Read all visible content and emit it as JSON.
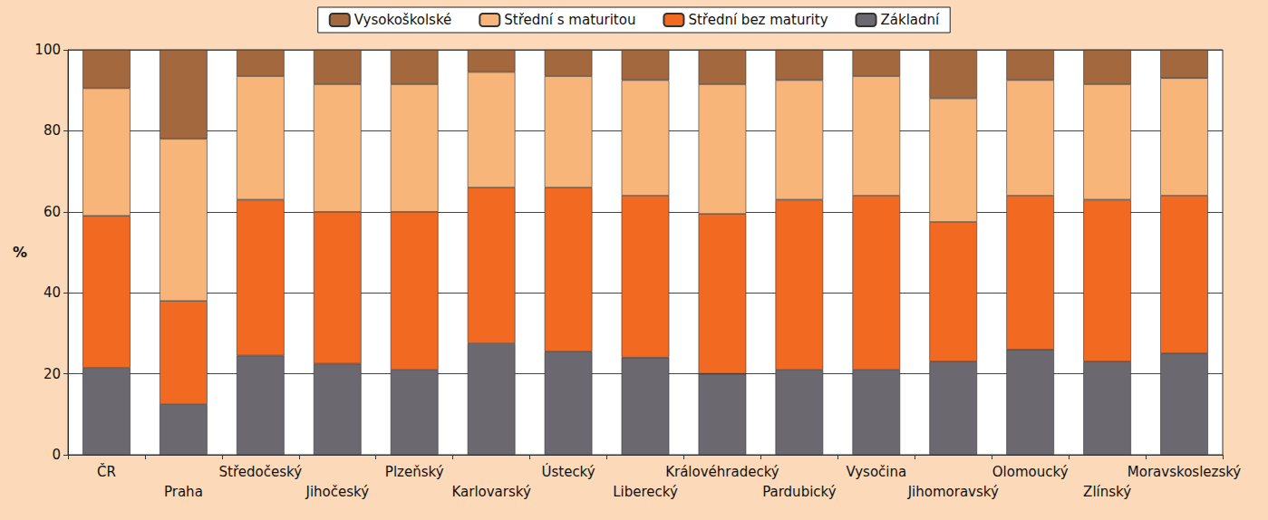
{
  "chart_data": {
    "type": "bar",
    "stacked": true,
    "grid": true,
    "legend": "top",
    "y_label": "%",
    "categories": [
      "ČR",
      "Praha",
      "Středočeský",
      "Jihočeský",
      "Plzeňský",
      "Karlovarský",
      "Ústecký",
      "Liberecký",
      "Královéhradecký",
      "Pardubický",
      "Vysočina",
      "Jihomoravský",
      "Olomoucký",
      "Zlínský",
      "Moravskoslezský"
    ],
    "ylim": [
      0,
      100
    ],
    "yticks": [
      0,
      20,
      40,
      60,
      80,
      100
    ],
    "series": [
      {
        "name": "Základní",
        "color": "#6b6870",
        "values": [
          21.5,
          12.5,
          24.5,
          22.5,
          21,
          27.5,
          25.5,
          24,
          20,
          21,
          21,
          23,
          26,
          23,
          25
        ]
      },
      {
        "name": "Střední bez maturity",
        "color": "#f26a22",
        "values": [
          37.5,
          25.5,
          38.5,
          37.5,
          39,
          38.5,
          40.5,
          40,
          39.5,
          42,
          43,
          34.5,
          38,
          40,
          39
        ]
      },
      {
        "name": "Střední s maturitou",
        "color": "#f7b57a",
        "values": [
          31.5,
          40,
          30.5,
          31.5,
          31.5,
          28.5,
          27.5,
          28.5,
          32,
          29.5,
          29.5,
          30.5,
          28.5,
          28.5,
          29
        ]
      },
      {
        "name": "Vysokoškolské",
        "color": "#a4683e",
        "values": [
          9.5,
          22,
          6.5,
          8.5,
          8.5,
          5.5,
          6.5,
          7.5,
          8.5,
          7.5,
          6.5,
          12,
          7.5,
          8.5,
          7
        ]
      }
    ]
  }
}
